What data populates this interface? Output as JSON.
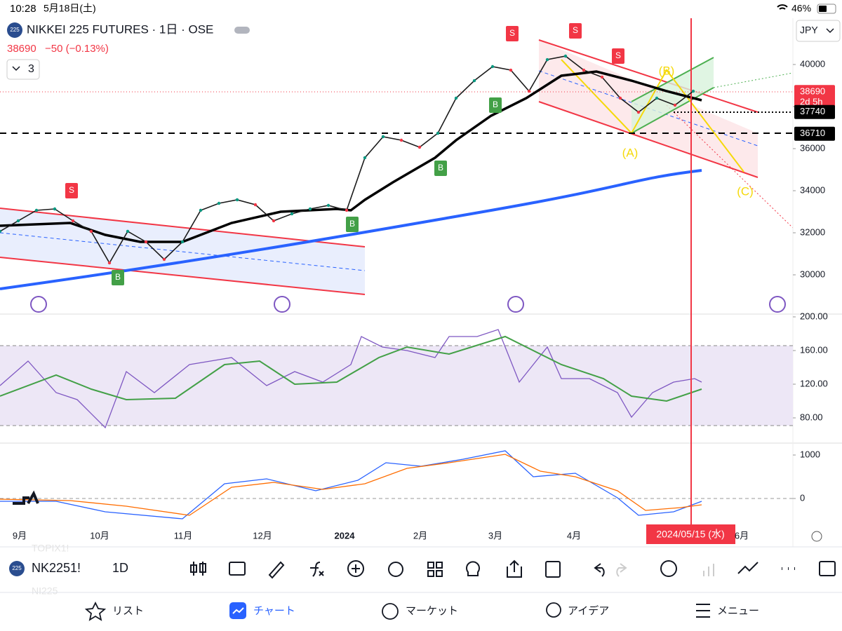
{
  "status_bar": {
    "time": "10:28",
    "date": "5月18日(土)",
    "battery": "46%"
  },
  "header": {
    "symbol_badge": "225",
    "title": "NIKKEI 225 FUTURES · 1日 · OSE",
    "last_price": "38690",
    "change": "−50 (−0.13%)",
    "indicator_count": "3",
    "currency": "JPY"
  },
  "chart_data": {
    "type": "line",
    "color": "#1b1b1b",
    "values": [
      32067,
      32567,
      33067,
      33133,
      32567,
      32067,
      30567,
      32067,
      31567,
      30733,
      31567,
      33067,
      33400,
      33567,
      33333,
      32567,
      32900,
      33133,
      33300,
      33067,
      35567,
      36567,
      36400,
      36067,
      36733,
      38400,
      39233,
      39900,
      39733,
      38733,
      40233,
      40400,
      39733,
      39400,
      38400,
      37733,
      38400,
      38067,
      38733
    ],
    "ylim": [
      28233,
      42067
    ],
    "yticks": [
      30000,
      32000,
      34000,
      36000,
      38000,
      40000
    ],
    "price_badges": [
      38690,
      37740,
      36710
    ],
    "countdown": "2d 5h",
    "x_labels": [
      "9月",
      "10月",
      "11月",
      "12月",
      "2024",
      "2月",
      "3月",
      "4月",
      "6月"
    ],
    "cursor_date": "2024/05/15 (水)",
    "signals": [
      "S",
      "S",
      "S",
      "S",
      "B",
      "B",
      "B",
      "B"
    ],
    "wave_labels": [
      "(A)",
      "(B)",
      "(C)"
    ]
  },
  "rsi_pane": {
    "ylim": [
      50,
      203.3
    ],
    "yticks": [
      {
        "value": 80,
        "label": "80.00"
      },
      {
        "value": 120,
        "label": "120.00"
      },
      {
        "value": 160,
        "label": "160.00"
      },
      {
        "value": 200,
        "label": "200.00"
      }
    ]
  },
  "macd_pane": {
    "ylim": [
      -629,
      1274
    ],
    "yticks": [
      0,
      1000
    ]
  },
  "toolbar": {
    "symbol_badge": "225",
    "symbol": "NK2251!",
    "interval": "1D",
    "ghost_1": "TOPIX1!",
    "ghost_2": "NI225"
  },
  "tab_bar": {
    "tabs": [
      "リスト",
      "チャート",
      "マーケット",
      "アイデア",
      "メニュー"
    ]
  }
}
